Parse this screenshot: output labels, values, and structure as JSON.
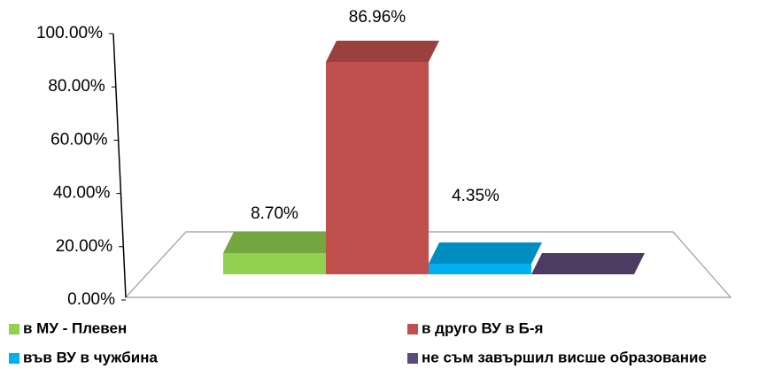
{
  "chart_data": {
    "type": "bar3d",
    "series": [
      {
        "name": "в МУ - Плевен",
        "color": "#92d050",
        "values": [
          8.7
        ],
        "value_labels": [
          "8.70%"
        ]
      },
      {
        "name": "в друго ВУ в Б-я",
        "color": "#c0504d",
        "values": [
          86.96
        ],
        "value_labels": [
          "86.96%"
        ]
      },
      {
        "name": "във ВУ в чужбина",
        "color": "#00b0f0",
        "values": [
          4.35
        ],
        "value_labels": [
          "4.35%"
        ]
      },
      {
        "name": "не съм завършил висше образование",
        "color": "#604a7b",
        "values": [
          0
        ],
        "value_labels": [
          null
        ]
      }
    ],
    "ylim": [
      0,
      100
    ],
    "yticks": [
      {
        "value": 0,
        "label": "0.00%"
      },
      {
        "value": 20,
        "label": "20.00%"
      },
      {
        "value": 40,
        "label": "40.00%"
      },
      {
        "value": 60,
        "label": "60.00%"
      },
      {
        "value": 80,
        "label": "80.00%"
      },
      {
        "value": 100,
        "label": "100.00%"
      }
    ],
    "grid": false
  }
}
